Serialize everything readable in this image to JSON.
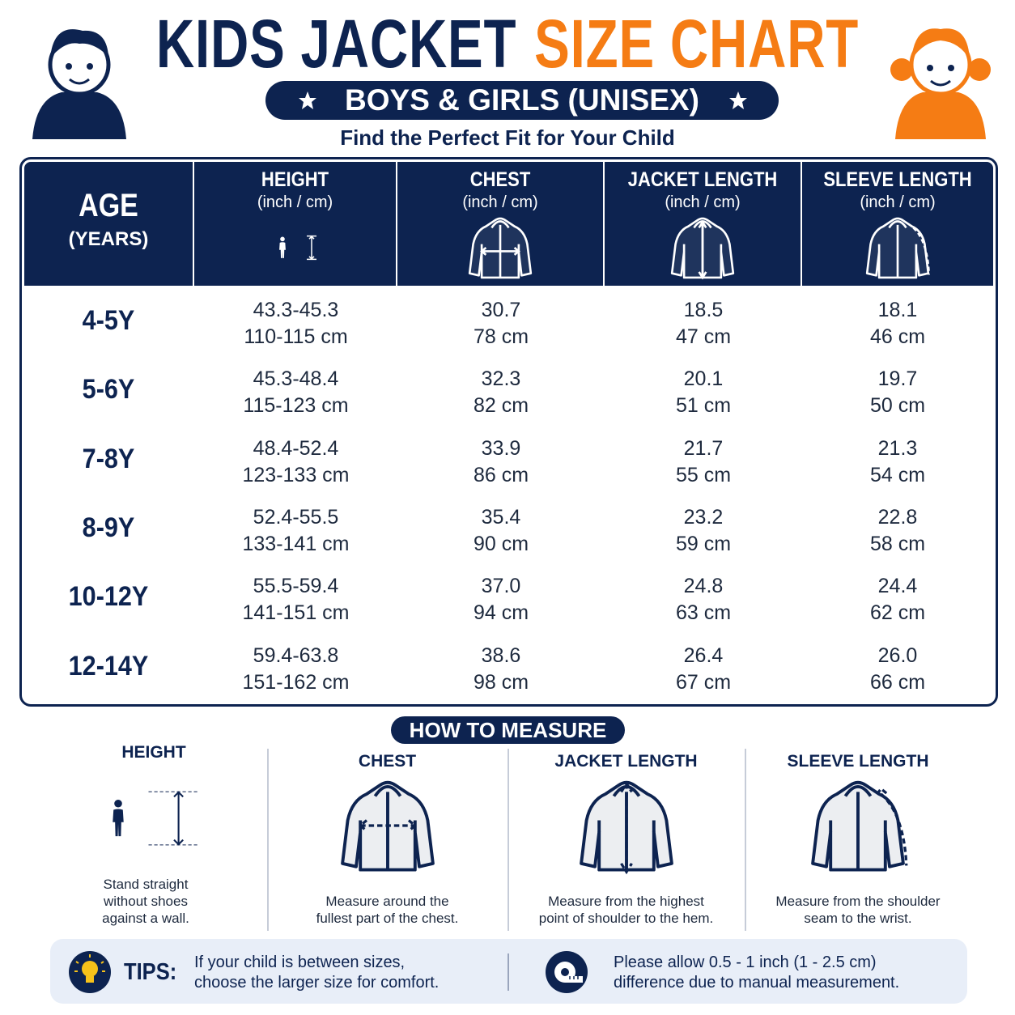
{
  "header": {
    "title_main": "KIDS JACKET",
    "title_accent": "SIZE CHART",
    "banner": "BOYS & GIRLS (UNISEX)",
    "subtitle": "Find the Perfect Fit for Your Child"
  },
  "table": {
    "columns": [
      {
        "title": "AGE",
        "unit": "(YEARS)"
      },
      {
        "title": "HEIGHT",
        "unit": "(inch / cm)"
      },
      {
        "title": "CHEST",
        "unit": "(inch / cm)"
      },
      {
        "title": "JACKET LENGTH",
        "unit": "(inch / cm)"
      },
      {
        "title": "SLEEVE LENGTH",
        "unit": "(inch / cm)"
      }
    ],
    "rows": [
      {
        "age": "4-5Y",
        "values": [
          [
            "43.3-45.3",
            "110-115 cm"
          ],
          [
            "30.7",
            "78 cm"
          ],
          [
            "18.5",
            "47 cm"
          ],
          [
            "18.1",
            "46 cm"
          ]
        ]
      },
      {
        "age": "5-6Y",
        "values": [
          [
            "45.3-48.4",
            "115-123 cm"
          ],
          [
            "32.3",
            "82 cm"
          ],
          [
            "20.1",
            "51 cm"
          ],
          [
            "19.7",
            "50 cm"
          ]
        ]
      },
      {
        "age": "7-8Y",
        "values": [
          [
            "48.4-52.4",
            "123-133 cm"
          ],
          [
            "33.9",
            "86 cm"
          ],
          [
            "21.7",
            "55 cm"
          ],
          [
            "21.3",
            "54 cm"
          ]
        ]
      },
      {
        "age": "8-9Y",
        "values": [
          [
            "52.4-55.5",
            "133-141 cm"
          ],
          [
            "35.4",
            "90 cm"
          ],
          [
            "23.2",
            "59 cm"
          ],
          [
            "22.8",
            "58 cm"
          ]
        ]
      },
      {
        "age": "10-12Y",
        "values": [
          [
            "55.5-59.4",
            "141-151 cm"
          ],
          [
            "37.0",
            "94 cm"
          ],
          [
            "24.8",
            "63 cm"
          ],
          [
            "24.4",
            "62 cm"
          ]
        ]
      },
      {
        "age": "12-14Y",
        "values": [
          [
            "59.4-63.8",
            "151-162 cm"
          ],
          [
            "38.6",
            "98 cm"
          ],
          [
            "26.4",
            "67 cm"
          ],
          [
            "26.0",
            "66 cm"
          ]
        ]
      }
    ]
  },
  "how_to_measure": {
    "title": "HOW TO MEASURE",
    "items": [
      {
        "label": "HEIGHT",
        "text": [
          "Stand straight",
          "without shoes",
          "against a wall."
        ]
      },
      {
        "label": "CHEST",
        "text": [
          "Measure around the",
          "fullest part of the chest."
        ]
      },
      {
        "label": "JACKET LENGTH",
        "text": [
          "Measure from the highest",
          "point of shoulder to the hem."
        ]
      },
      {
        "label": "SLEEVE LENGTH",
        "text": [
          "Measure from the shoulder",
          "seam to the wrist."
        ]
      }
    ]
  },
  "tips": {
    "label": "TIPS:",
    "text": [
      "If your child is between sizes,",
      "choose the larger size for comfort."
    ],
    "note": [
      "Please allow 0.5 - 1 inch (1 - 2.5 cm)",
      "difference due to manual measurement."
    ]
  }
}
